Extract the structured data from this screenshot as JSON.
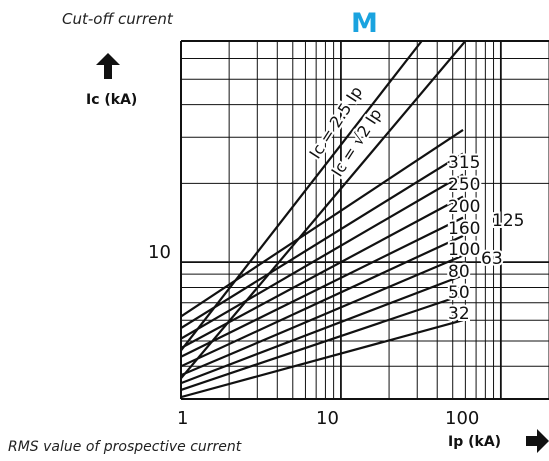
{
  "header": {
    "caption_top": "Cut-off current",
    "badge": "M"
  },
  "axes": {
    "y_label": "Ic (kA)",
    "x_label": "Ip (kA)",
    "caption_bottom": "RMS value of prospective current"
  },
  "icons": {
    "y_arrow": "arrow-up-icon",
    "x_arrow": "arrow-right-icon"
  },
  "chart_data": {
    "type": "line",
    "x_scale": "log",
    "y_scale": "log",
    "xlim": [
      1,
      200
    ],
    "ylim": [
      3,
      70
    ],
    "x_ticks": [
      {
        "value": 1,
        "label": "1"
      },
      {
        "value": 10,
        "label": "10"
      },
      {
        "value": 100,
        "label": "100"
      }
    ],
    "y_ticks": [
      {
        "value": 10,
        "label": "10"
      }
    ],
    "grid": true,
    "series": [
      {
        "name": "Ic = 2.5 Ip",
        "points": [
          [
            1,
            4.6
          ],
          [
            32,
            70
          ]
        ]
      },
      {
        "name": "Ic = √2 Ip",
        "points": [
          [
            1,
            3.6
          ],
          [
            60,
            70
          ]
        ]
      },
      {
        "name": "315",
        "points": [
          [
            1,
            6.2
          ],
          [
            58,
            32.0
          ]
        ]
      },
      {
        "name": "250",
        "points": [
          [
            1,
            5.6
          ],
          [
            58,
            26.0
          ]
        ]
      },
      {
        "name": "200",
        "points": [
          [
            1,
            5.1
          ],
          [
            58,
            21.6
          ]
        ]
      },
      {
        "name": "160",
        "points": [
          [
            1,
            4.7
          ],
          [
            58,
            17.8
          ]
        ]
      },
      {
        "name": "125",
        "points": [
          [
            1,
            4.35
          ],
          [
            58,
            14.8
          ]
        ]
      },
      {
        "name": "100",
        "points": [
          [
            1,
            4.0
          ],
          [
            58,
            12.6
          ]
        ]
      },
      {
        "name": "80",
        "points": [
          [
            1,
            3.7
          ],
          [
            58,
            10.6
          ]
        ]
      },
      {
        "name": "63",
        "points": [
          [
            1,
            3.45
          ],
          [
            58,
            8.9
          ]
        ]
      },
      {
        "name": "50",
        "points": [
          [
            1,
            3.25
          ],
          [
            58,
            7.5
          ]
        ]
      },
      {
        "name": "32",
        "points": [
          [
            1,
            3.05
          ],
          [
            58,
            6.0
          ]
        ]
      }
    ],
    "line_labels": [
      {
        "text": "Ic = 2.5 Ip",
        "series": 0
      },
      {
        "text": "Ic = √2 Ip",
        "series": 1
      },
      {
        "text": "315",
        "series": 2
      },
      {
        "text": "250",
        "series": 3
      },
      {
        "text": "200",
        "series": 4
      },
      {
        "text": "160",
        "series": 5
      },
      {
        "text": "125",
        "series": 6
      },
      {
        "text": "100",
        "series": 7
      },
      {
        "text": "80",
        "series": 8
      },
      {
        "text": "63",
        "series": 9
      },
      {
        "text": "50",
        "series": 10
      },
      {
        "text": "32",
        "series": 11
      }
    ]
  }
}
